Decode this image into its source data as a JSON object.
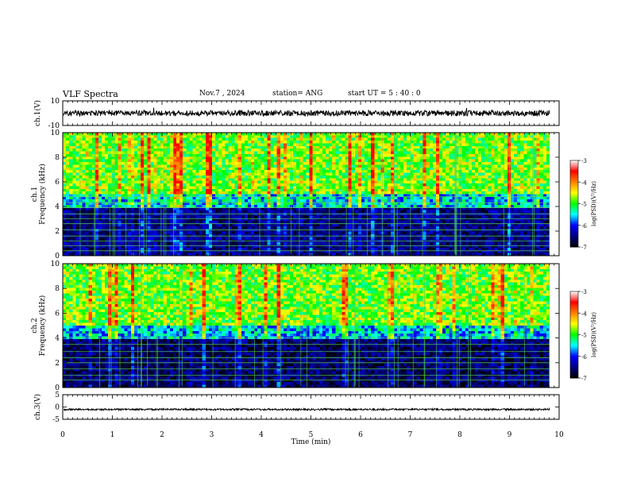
{
  "header": {
    "title": "VLF Spectra",
    "date": "Nov.7 , 2024",
    "station": "station= ANG",
    "start_ut": "start UT = 5 : 40 : 0"
  },
  "chart_data": [
    {
      "type": "line",
      "id": "ch1-waveform",
      "ylabel": "ch.1(V)",
      "yticks": [
        "10",
        "-10"
      ],
      "ylim": [
        -10,
        10
      ],
      "xlim": [
        0,
        10
      ],
      "description_level": 0,
      "color": "#000000"
    },
    {
      "type": "heatmap",
      "id": "ch1-spectrogram",
      "ylabel_lines": [
        "ch.1",
        "Frequency (kHz)"
      ],
      "yticks": [
        "0",
        "2",
        "4",
        "6",
        "8",
        "10"
      ],
      "ylim": [
        0,
        10
      ],
      "xlim": [
        0,
        10
      ],
      "colorbar": {
        "label": "log(PSD)(V²/Hz)",
        "ticks": [
          "-3",
          "-4",
          "-5",
          "-6",
          "-7"
        ],
        "range": [
          -7,
          -3
        ],
        "colors": [
          "#000000",
          "#000080",
          "#0000ff",
          "#00ffff",
          "#00ff00",
          "#ffff00",
          "#ff8000",
          "#ff0000",
          "#ffffff"
        ]
      }
    },
    {
      "type": "heatmap",
      "id": "ch2-spectrogram",
      "ylabel_lines": [
        "ch.2",
        "Frequency (kHz)"
      ],
      "yticks": [
        "0",
        "2",
        "4",
        "6",
        "8",
        "10"
      ],
      "ylim": [
        0,
        10
      ],
      "xlim": [
        0,
        10
      ],
      "colorbar": {
        "label": "log(PSD)(V²/Hz)",
        "ticks": [
          "-3",
          "-4",
          "-5",
          "-6",
          "-7"
        ],
        "range": [
          -7,
          -3
        ],
        "colors": [
          "#000000",
          "#000080",
          "#0000ff",
          "#00ffff",
          "#00ff00",
          "#ffff00",
          "#ff8000",
          "#ff0000",
          "#ffffff"
        ]
      }
    },
    {
      "type": "line",
      "id": "ch3-waveform",
      "ylabel": "ch.3(V)",
      "yticks": [
        "5",
        "0",
        "-5"
      ],
      "ylim": [
        -5,
        5
      ],
      "xlim": [
        0,
        10
      ],
      "level": -1,
      "color": "#000000"
    }
  ],
  "xaxis": {
    "label": "Time (min)",
    "ticks": [
      "0",
      "1",
      "2",
      "3",
      "4",
      "5",
      "6",
      "7",
      "8",
      "9",
      "10"
    ]
  }
}
